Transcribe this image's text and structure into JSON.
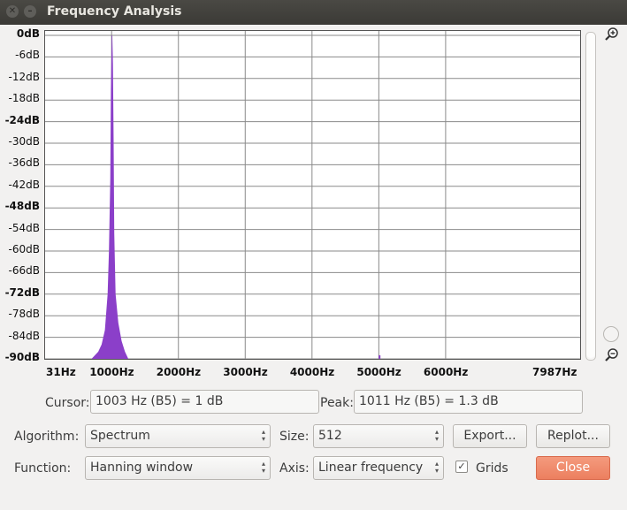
{
  "window": {
    "title": "Frequency Analysis"
  },
  "chart_data": {
    "type": "area",
    "title": "",
    "xlabel": "",
    "ylabel": "",
    "y_tick_labels": [
      "0dB",
      "-6dB",
      "-12dB",
      "-18dB",
      "-24dB",
      "-30dB",
      "-36dB",
      "-42dB",
      "-48dB",
      "-54dB",
      "-60dB",
      "-66dB",
      "-72dB",
      "-78dB",
      "-84dB",
      "-90dB"
    ],
    "y_bold_ticks": [
      "0dB",
      "-24dB",
      "-48dB",
      "-72dB",
      "-90dB"
    ],
    "x_tick_labels": [
      "31Hz",
      "1000Hz",
      "2000Hz",
      "3000Hz",
      "4000Hz",
      "5000Hz",
      "6000Hz",
      "7987Hz"
    ],
    "xlim": [
      31,
      7987
    ],
    "ylim": [
      -90,
      0
    ],
    "grid": true,
    "color": "#8b3fc9",
    "series": [
      {
        "x": [
          700,
          800,
          850,
          900,
          940,
          960,
          980,
          990,
          1000,
          1003,
          1011,
          1020,
          1030,
          1040,
          1060,
          1100,
          1150,
          1200,
          1250
        ],
        "y": [
          -90,
          -88,
          -86,
          -82,
          -72,
          -60,
          -40,
          -15,
          -3,
          1,
          1.3,
          -8,
          -30,
          -55,
          -72,
          -80,
          -85,
          -88,
          -90
        ]
      }
    ],
    "extra_spike": {
      "x": 5011,
      "y": -89
    }
  },
  "controls": {
    "cursor_label": "Cursor:",
    "cursor_value": "1003 Hz (B5) = 1 dB",
    "peak_label": "Peak:",
    "peak_value": "1011 Hz (B5) = 1.3 dB",
    "algorithm_label": "Algorithm:",
    "algorithm_value": "Spectrum",
    "size_label": "Size:",
    "size_value": "512",
    "function_label": "Function:",
    "function_value": "Hanning window",
    "axis_label": "Axis:",
    "axis_value": "Linear frequency",
    "grids_label": "Grids",
    "grids_checked": true,
    "export_label": "Export...",
    "replot_label": "Replot...",
    "close_label": "Close"
  },
  "icons": {
    "close": "close-icon",
    "minimize": "minimize-icon",
    "zoom_in": "zoom-in-icon",
    "zoom_out": "zoom-out-icon"
  }
}
